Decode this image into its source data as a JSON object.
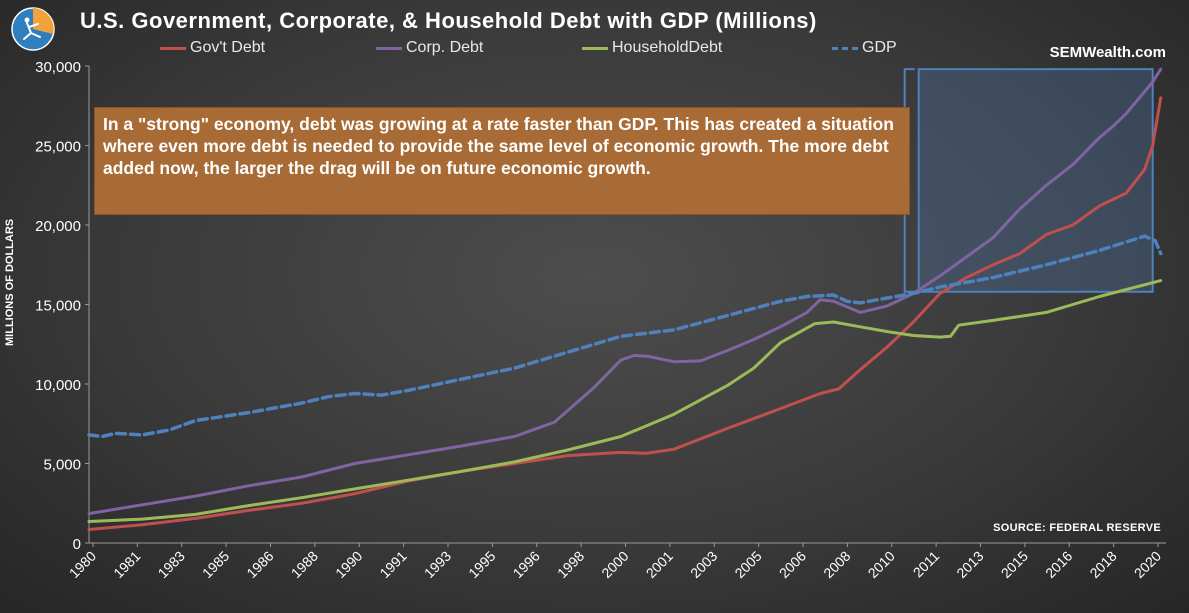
{
  "header": {
    "title": "U.S. Government, Corporate, & Household Debt with GDP (Millions)",
    "brand": "SEMWealth.com",
    "source": "SOURCE:  FEDERAL RESERVE"
  },
  "annotation": {
    "text": "In a \"strong\" economy, debt was growing at a rate faster than GDP. This has created a situation where even more debt is needed to provide the same level of economic growth. The more debt added now, the larger the drag will be on future economic growth."
  },
  "colors": {
    "govt": "#c0504d",
    "corp": "#8064a2",
    "household": "#9bbb59",
    "gdp": "#4f81bd",
    "annotation_bg": "#a86b35"
  },
  "chart_data": {
    "type": "line",
    "title": "U.S. Government, Corporate, & Household Debt with GDP (Millions)",
    "xlabel": "",
    "ylabel": "MILLIONS OF DOLLARS",
    "ylim": [
      0,
      30000
    ],
    "xlim": [
      1980,
      2020.5
    ],
    "yticks": [
      0,
      5000,
      10000,
      15000,
      20000,
      25000,
      30000
    ],
    "ytick_labels": [
      "0",
      "5,000",
      "10,000",
      "15,000",
      "20,000",
      "25,000",
      "30,000"
    ],
    "xtick_labels": [
      "1980",
      "1981",
      "1983",
      "1985",
      "1986",
      "1988",
      "1990",
      "1991",
      "1993",
      "1995",
      "1996",
      "1998",
      "2000",
      "2001",
      "2003",
      "2005",
      "2006",
      "2008",
      "2010",
      "2011",
      "2013",
      "2015",
      "2016",
      "2018",
      "2020"
    ],
    "legend": [
      "Gov't Debt",
      "Corp. Debt",
      "HouseholdDebt",
      "GDP"
    ],
    "highlight_box": {
      "x_range": [
        2011.2,
        2020
      ],
      "y_range": [
        15800,
        29800
      ]
    },
    "series": [
      {
        "name": "Gov't Debt",
        "style": "solid",
        "x": [
          1980,
          1982,
          1984,
          1986,
          1988,
          1990,
          1992,
          1994,
          1996,
          1998,
          2000,
          2001,
          2002,
          2004,
          2006,
          2007.5,
          2008.2,
          2009,
          2010,
          2011,
          2012,
          2013,
          2014,
          2015,
          2016,
          2017,
          2018,
          2019,
          2019.7,
          2020,
          2020.3
        ],
        "values": [
          850,
          1150,
          1550,
          2050,
          2500,
          3100,
          3900,
          4500,
          5000,
          5500,
          5700,
          5650,
          5900,
          7200,
          8450,
          9400,
          9700,
          10900,
          12300,
          13900,
          15700,
          16700,
          17500,
          18200,
          19400,
          20000,
          21200,
          22000,
          23500,
          25000,
          28000
        ]
      },
      {
        "name": "Corp. Debt",
        "style": "solid",
        "x": [
          1980,
          1982,
          1984,
          1986,
          1988,
          1990,
          1992,
          1994,
          1996,
          1997.5,
          1999,
          2000,
          2000.5,
          2001,
          2002,
          2003,
          2004,
          2005,
          2006,
          2007,
          2007.5,
          2008,
          2009,
          2010,
          2011,
          2012,
          2013,
          2014,
          2015,
          2016,
          2017,
          2018,
          2018.5,
          2019,
          2020,
          2020.3
        ],
        "values": [
          1850,
          2400,
          2950,
          3600,
          4150,
          5000,
          5550,
          6100,
          6700,
          7600,
          9800,
          11500,
          11800,
          11750,
          11400,
          11450,
          12100,
          12800,
          13600,
          14500,
          15300,
          15200,
          14500,
          14900,
          15700,
          16800,
          18000,
          19200,
          21000,
          22500,
          23800,
          25500,
          26200,
          27000,
          29000,
          29800
        ]
      },
      {
        "name": "HouseholdDebt",
        "style": "solid",
        "x": [
          1980,
          1982,
          1984,
          1986,
          1988,
          1990,
          1992,
          1994,
          1996,
          1998,
          2000,
          2002,
          2004,
          2005,
          2006,
          2007.3,
          2008,
          2009,
          2010,
          2011,
          2012,
          2012.4,
          2012.7,
          2014,
          2016,
          2018,
          2020.3
        ],
        "values": [
          1350,
          1500,
          1800,
          2350,
          2850,
          3400,
          3950,
          4500,
          5100,
          5850,
          6700,
          8100,
          9900,
          11000,
          12600,
          13800,
          13900,
          13600,
          13300,
          13050,
          12950,
          13000,
          13700,
          14000,
          14500,
          15500,
          16500
        ]
      },
      {
        "name": "GDP",
        "style": "dashed",
        "x": [
          1980,
          1980.5,
          1981,
          1982,
          1983,
          1984,
          1986,
          1988,
          1989,
          1990,
          1991,
          1992,
          1994,
          1996,
          1998,
          2000,
          2002,
          2004,
          2006,
          2007,
          2008,
          2008.5,
          2009,
          2010,
          2011,
          2012,
          2014,
          2016,
          2018,
          2019.7,
          2020.1,
          2020.3
        ],
        "values": [
          6800,
          6700,
          6900,
          6800,
          7100,
          7700,
          8200,
          8800,
          9200,
          9400,
          9300,
          9600,
          10300,
          11000,
          12000,
          13000,
          13400,
          14300,
          15200,
          15500,
          15600,
          15200,
          15100,
          15400,
          15700,
          16100,
          16700,
          17500,
          18400,
          19300,
          19000,
          18200
        ]
      }
    ]
  }
}
